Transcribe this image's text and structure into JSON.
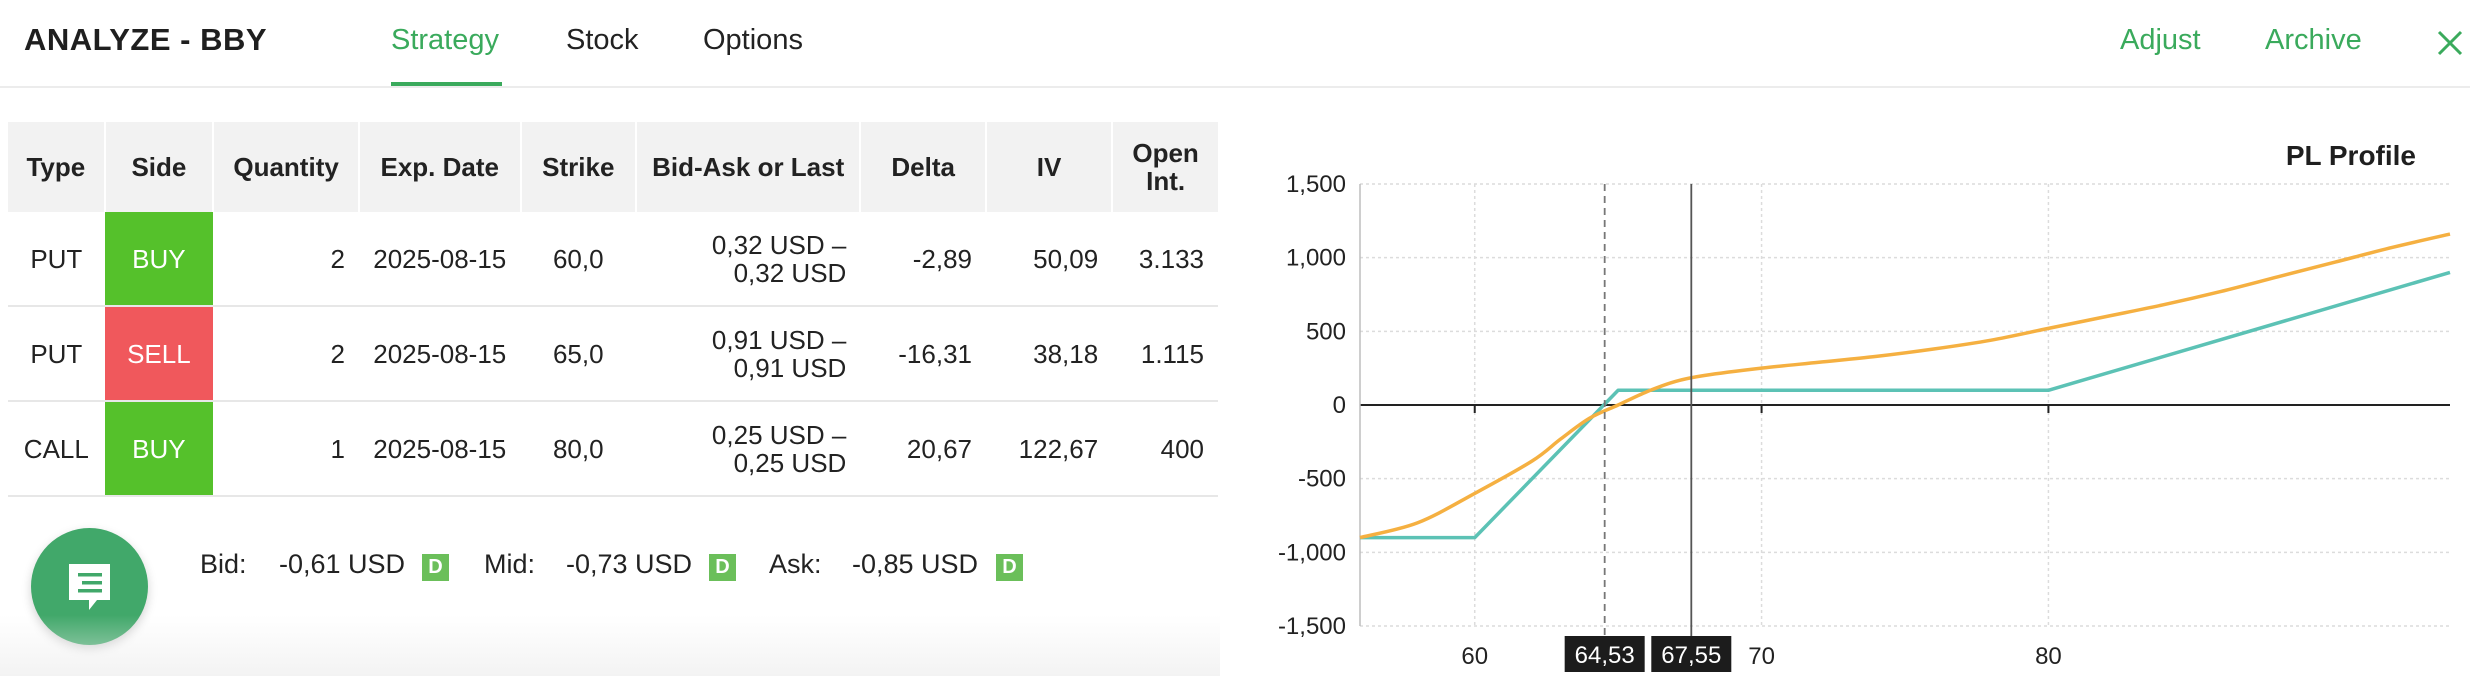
{
  "header": {
    "title": "ANALYZE - BBY",
    "tabs": [
      "Strategy",
      "Stock",
      "Options"
    ],
    "active_tab": "Strategy",
    "adjust_label": "Adjust",
    "archive_label": "Archive",
    "close_icon": "close-icon"
  },
  "table": {
    "columns": [
      "Type",
      "Side",
      "Quantity",
      "Exp. Date",
      "Strike",
      "Bid-Ask or Last",
      "Delta",
      "IV",
      "Open Int."
    ],
    "rows": [
      {
        "type": "PUT",
        "side": "BUY",
        "quantity": "2",
        "exp_date": "2025-08-15",
        "strike": "60,0",
        "bid_ask_1": "0,32 USD –",
        "bid_ask_2": "0,32 USD",
        "delta": "-2,89",
        "iv": "50,09",
        "open_int": "3.133"
      },
      {
        "type": "PUT",
        "side": "SELL",
        "quantity": "2",
        "exp_date": "2025-08-15",
        "strike": "65,0",
        "bid_ask_1": "0,91 USD –",
        "bid_ask_2": "0,91 USD",
        "delta": "-16,31",
        "iv": "38,18",
        "open_int": "1.115"
      },
      {
        "type": "CALL",
        "side": "BUY",
        "quantity": "1",
        "exp_date": "2025-08-15",
        "strike": "80,0",
        "bid_ask_1": "0,25 USD –",
        "bid_ask_2": "0,25 USD",
        "delta": "20,67",
        "iv": "122,67",
        "open_int": "400"
      }
    ]
  },
  "summary": {
    "bid_label": "Bid:",
    "bid_value": "-0,61 USD",
    "mid_label": "Mid:",
    "mid_value": "-0,73 USD",
    "ask_label": "Ask:",
    "ask_value": "-0,85 USD",
    "badge": "D"
  },
  "colors": {
    "accent": "#3aaa5c",
    "buy": "#55c12b",
    "sell": "#f0585c",
    "expiration_line": "#5cc2b5",
    "today_line": "#f5b041"
  },
  "chart_data": {
    "type": "line",
    "title": "PL Profile",
    "xlabel": "",
    "ylabel": "",
    "xlim": [
      56,
      94
    ],
    "ylim": [
      -1500,
      1500
    ],
    "y_ticks": [
      1500,
      1000,
      500,
      0,
      -500,
      -1000,
      -1500
    ],
    "y_tick_labels": [
      "1,500",
      "1,000",
      "500",
      "0",
      "-500",
      "-1,000",
      "-1,500"
    ],
    "x_ticks": [
      60,
      70,
      80
    ],
    "x_tick_labels": [
      "60",
      "70",
      "80"
    ],
    "markers": [
      {
        "value": 64.53,
        "label": "64,53",
        "style": "dashed"
      },
      {
        "value": 67.55,
        "label": "67,55",
        "style": "solid"
      }
    ],
    "grid": true,
    "series": [
      {
        "color": "#5cc2b5",
        "x": [
          56,
          60,
          65,
          80,
          94
        ],
        "y": [
          -900,
          -900,
          100,
          100,
          900
        ]
      },
      {
        "color": "#f5b041",
        "x": [
          56,
          58,
          60,
          62,
          63,
          64,
          65,
          66,
          67,
          68,
          70,
          72,
          74,
          76,
          78,
          80,
          82,
          84,
          86,
          88,
          90,
          92,
          94
        ],
        "y": [
          -900,
          -800,
          -600,
          -380,
          -230,
          -90,
          0,
          90,
          160,
          200,
          250,
          290,
          330,
          380,
          440,
          520,
          600,
          680,
          770,
          870,
          970,
          1070,
          1160
        ]
      }
    ]
  }
}
